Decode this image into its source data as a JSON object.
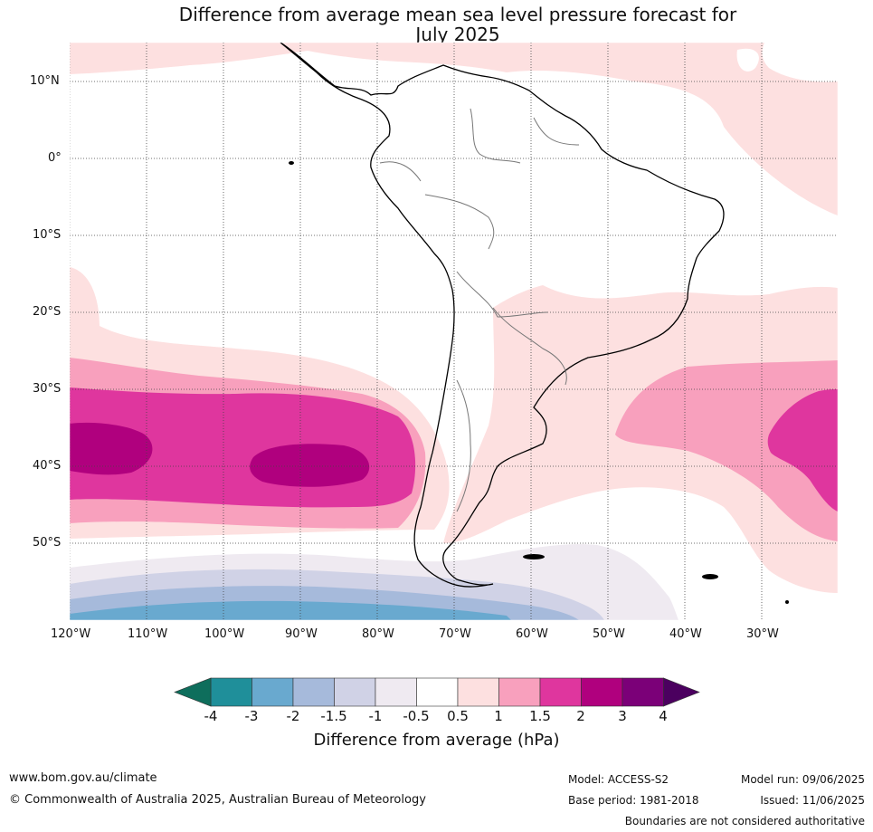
{
  "title": {
    "line1": "Difference from average mean sea level pressure forecast for",
    "line2": "July 2025"
  },
  "axes": {
    "lat_labels": [
      "10°N",
      "0°",
      "10°S",
      "20°S",
      "30°S",
      "40°S",
      "50°S"
    ],
    "lon_labels": [
      "120°W",
      "110°W",
      "100°W",
      "90°W",
      "80°W",
      "70°W",
      "60°W",
      "50°W",
      "40°W",
      "30°W"
    ],
    "lat_range": [
      -60,
      15
    ],
    "lon_range": [
      -120,
      -20
    ]
  },
  "colorbar": {
    "ticks": [
      "-4",
      "-3",
      "-2",
      "-1.5",
      "-1",
      "-0.5",
      "0.5",
      "1",
      "1.5",
      "2",
      "3",
      "4"
    ],
    "colors": [
      "#1f8f9a",
      "#69a9cf",
      "#a6badb",
      "#d0d2e6",
      "#efeaf1",
      "#ffffff",
      "#fde0e0",
      "#f8a0bd",
      "#df369e",
      "#b0007e",
      "#7b0078"
    ],
    "under_color": "#0e6e5c",
    "over_color": "#4b005f",
    "label": "Difference from average (hPa)"
  },
  "footer": {
    "website": "www.bom.gov.au/climate",
    "copyright": "© Commonwealth of Australia 2025, Australian Bureau of Meteorology",
    "model": "Model: ACCESS-S2",
    "base_period": "Base period: 1981-2018",
    "model_run": "Model run: 09/06/2025",
    "issued": "Issued: 11/06/2025",
    "disclaimer": "Boundaries are not considered authoritative"
  }
}
